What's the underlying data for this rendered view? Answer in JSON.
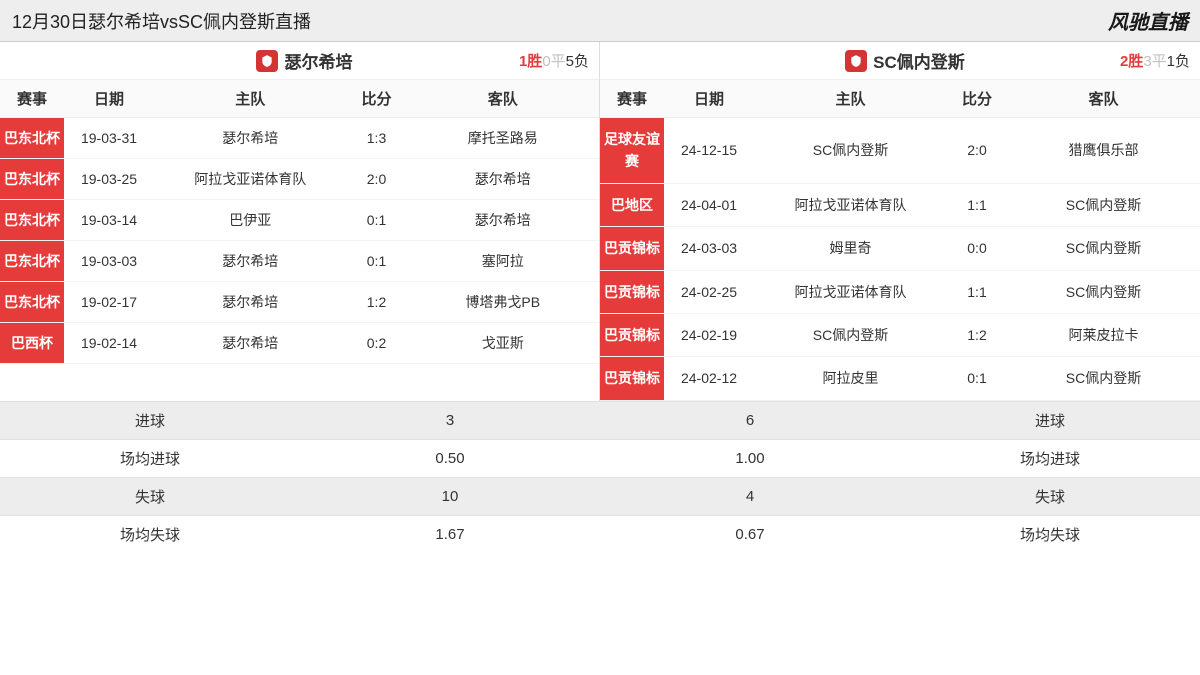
{
  "header": {
    "title": "12月30日瑟尔希培vsSC佩内登斯直播",
    "brand": "风驰直播"
  },
  "left": {
    "team": "瑟尔希培",
    "record_win": "1胜",
    "record_draw": "0平",
    "record_loss": "5负",
    "cols": {
      "comp": "赛事",
      "date": "日期",
      "home": "主队",
      "score": "比分",
      "away": "客队"
    },
    "rows": [
      {
        "comp": "巴东北杯",
        "date": "19-03-31",
        "home": "瑟尔希培",
        "score": "1:3",
        "away": "摩托圣路易"
      },
      {
        "comp": "巴东北杯",
        "date": "19-03-25",
        "home": "阿拉戈亚诺体育队",
        "score": "2:0",
        "away": "瑟尔希培"
      },
      {
        "comp": "巴东北杯",
        "date": "19-03-14",
        "home": "巴伊亚",
        "score": "0:1",
        "away": "瑟尔希培"
      },
      {
        "comp": "巴东北杯",
        "date": "19-03-03",
        "home": "瑟尔希培",
        "score": "0:1",
        "away": "塞阿拉"
      },
      {
        "comp": "巴东北杯",
        "date": "19-02-17",
        "home": "瑟尔希培",
        "score": "1:2",
        "away": "博塔弗戈PB"
      },
      {
        "comp": "巴西杯",
        "date": "19-02-14",
        "home": "瑟尔希培",
        "score": "0:2",
        "away": "戈亚斯"
      }
    ]
  },
  "right": {
    "team": "SC佩内登斯",
    "record_win": "2胜",
    "record_draw": "3平",
    "record_loss": "1负",
    "cols": {
      "comp": "赛事",
      "date": "日期",
      "home": "主队",
      "score": "比分",
      "away": "客队"
    },
    "rows": [
      {
        "comp": "足球友谊赛",
        "date": "24-12-15",
        "home": "SC佩内登斯",
        "score": "2:0",
        "away": "猎鹰俱乐部"
      },
      {
        "comp": "巴地区",
        "date": "24-04-01",
        "home": "阿拉戈亚诺体育队",
        "score": "1:1",
        "away": "SC佩内登斯"
      },
      {
        "comp": "巴贡锦标",
        "date": "24-03-03",
        "home": "姆里奇",
        "score": "0:0",
        "away": "SC佩内登斯"
      },
      {
        "comp": "巴贡锦标",
        "date": "24-02-25",
        "home": "阿拉戈亚诺体育队",
        "score": "1:1",
        "away": "SC佩内登斯"
      },
      {
        "comp": "巴贡锦标",
        "date": "24-02-19",
        "home": "SC佩内登斯",
        "score": "1:2",
        "away": "阿莱皮拉卡"
      },
      {
        "comp": "巴贡锦标",
        "date": "24-02-12",
        "home": "阿拉皮里",
        "score": "0:1",
        "away": "SC佩内登斯"
      }
    ]
  },
  "stats": {
    "rows": [
      {
        "l_label": "进球",
        "l_val": "3",
        "r_val": "6",
        "r_label": "进球"
      },
      {
        "l_label": "场均进球",
        "l_val": "0.50",
        "r_val": "1.00",
        "r_label": "场均进球"
      },
      {
        "l_label": "失球",
        "l_val": "10",
        "r_val": "4",
        "r_label": "失球"
      },
      {
        "l_label": "场均失球",
        "l_val": "1.67",
        "r_val": "0.67",
        "r_label": "场均失球"
      }
    ]
  },
  "colors": {
    "accent": "#e63b3b",
    "header_bg": "#eeeeee",
    "row_alt": "#ededed"
  }
}
